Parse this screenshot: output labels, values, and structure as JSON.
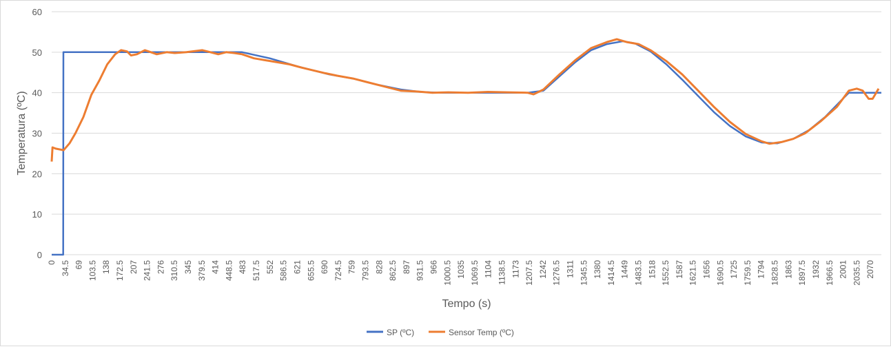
{
  "chart_data": {
    "type": "line",
    "title": "",
    "xlabel": "Tempo (s)",
    "ylabel": "Temperatura (ºC)",
    "ylim": [
      0,
      60
    ],
    "yticks": [
      0,
      10,
      20,
      30,
      40,
      50,
      60
    ],
    "xlim": [
      0,
      2092
    ],
    "xtick_labels": [
      "0",
      "34.5",
      "69",
      "103.5",
      "138",
      "172.5",
      "207",
      "241.5",
      "276",
      "310.5",
      "345",
      "379.5",
      "414",
      "448.5",
      "483",
      "517.5",
      "552",
      "586.5",
      "621",
      "655.5",
      "690",
      "724.5",
      "759",
      "793.5",
      "828",
      "862.5",
      "897",
      "931.5",
      "966",
      "1000.5",
      "1035",
      "1069.5",
      "1104",
      "1138.5",
      "1173",
      "1207.5",
      "1242",
      "1276.5",
      "1311",
      "1345.5",
      "1380",
      "1414.5",
      "1449",
      "1483.5",
      "1518",
      "1552.5",
      "1587",
      "1621.5",
      "1656",
      "1690.5",
      "1725",
      "1759.5",
      "1794",
      "1828.5",
      "1863",
      "1897.5",
      "1932",
      "1966.5",
      "2001",
      "2035.5",
      "2070"
    ],
    "grid": true,
    "legend_position": "bottom",
    "series": [
      {
        "name": "SP (ºC)",
        "color": "#4472C4",
        "points": [
          [
            0,
            0
          ],
          [
            29,
            0
          ],
          [
            29.5,
            50
          ],
          [
            480,
            50
          ],
          [
            550,
            48.5
          ],
          [
            620,
            46.5
          ],
          [
            700,
            44.5
          ],
          [
            760,
            43.5
          ],
          [
            820,
            42
          ],
          [
            880,
            40.8
          ],
          [
            930,
            40.2
          ],
          [
            980,
            40
          ],
          [
            1200,
            40
          ],
          [
            1240,
            40.5
          ],
          [
            1280,
            44
          ],
          [
            1320,
            47.5
          ],
          [
            1360,
            50.5
          ],
          [
            1400,
            52
          ],
          [
            1440,
            52.7
          ],
          [
            1470,
            52.2
          ],
          [
            1510,
            50.2
          ],
          [
            1550,
            47
          ],
          [
            1590,
            43.2
          ],
          [
            1630,
            39.2
          ],
          [
            1670,
            35.2
          ],
          [
            1710,
            31.8
          ],
          [
            1750,
            29.2
          ],
          [
            1790,
            27.7
          ],
          [
            1830,
            27.5
          ],
          [
            1870,
            28.6
          ],
          [
            1910,
            30.8
          ],
          [
            1950,
            34
          ],
          [
            1990,
            38
          ],
          [
            2010,
            40
          ],
          [
            2092,
            40
          ]
        ]
      },
      {
        "name": "Sensor Temp (ºC)",
        "color": "#ED7D31",
        "points": [
          [
            0,
            23
          ],
          [
            2,
            26.5
          ],
          [
            10,
            26.2
          ],
          [
            30,
            25.8
          ],
          [
            45,
            27.5
          ],
          [
            60,
            30
          ],
          [
            80,
            34
          ],
          [
            100,
            39.5
          ],
          [
            120,
            43
          ],
          [
            140,
            47
          ],
          [
            160,
            49.5
          ],
          [
            175,
            50.5
          ],
          [
            190,
            50.2
          ],
          [
            200,
            49.2
          ],
          [
            215,
            49.5
          ],
          [
            235,
            50.5
          ],
          [
            250,
            50
          ],
          [
            265,
            49.5
          ],
          [
            290,
            50
          ],
          [
            310,
            49.8
          ],
          [
            340,
            50
          ],
          [
            380,
            50.5
          ],
          [
            400,
            50
          ],
          [
            420,
            49.5
          ],
          [
            440,
            50
          ],
          [
            460,
            49.8
          ],
          [
            480,
            49.5
          ],
          [
            510,
            48.5
          ],
          [
            540,
            48
          ],
          [
            570,
            47.5
          ],
          [
            600,
            47
          ],
          [
            630,
            46.2
          ],
          [
            660,
            45.5
          ],
          [
            690,
            44.8
          ],
          [
            720,
            44.2
          ],
          [
            760,
            43.5
          ],
          [
            800,
            42.5
          ],
          [
            840,
            41.5
          ],
          [
            880,
            40.5
          ],
          [
            920,
            40.3
          ],
          [
            960,
            40
          ],
          [
            1000,
            40.1
          ],
          [
            1050,
            40
          ],
          [
            1100,
            40.2
          ],
          [
            1150,
            40.1
          ],
          [
            1200,
            40
          ],
          [
            1215,
            39.6
          ],
          [
            1240,
            40.8
          ],
          [
            1280,
            44.5
          ],
          [
            1320,
            48
          ],
          [
            1360,
            51
          ],
          [
            1400,
            52.5
          ],
          [
            1425,
            53.2
          ],
          [
            1450,
            52.5
          ],
          [
            1480,
            52
          ],
          [
            1510,
            50.5
          ],
          [
            1550,
            47.8
          ],
          [
            1590,
            44.5
          ],
          [
            1630,
            40.5
          ],
          [
            1670,
            36.5
          ],
          [
            1710,
            32.8
          ],
          [
            1750,
            29.8
          ],
          [
            1790,
            28
          ],
          [
            1810,
            27.4
          ],
          [
            1840,
            27.8
          ],
          [
            1870,
            28.6
          ],
          [
            1900,
            30
          ],
          [
            1940,
            33
          ],
          [
            1980,
            36.5
          ],
          [
            2010,
            40.5
          ],
          [
            2030,
            41
          ],
          [
            2045,
            40.5
          ],
          [
            2060,
            38.5
          ],
          [
            2070,
            38.5
          ],
          [
            2085,
            41
          ]
        ]
      }
    ]
  }
}
